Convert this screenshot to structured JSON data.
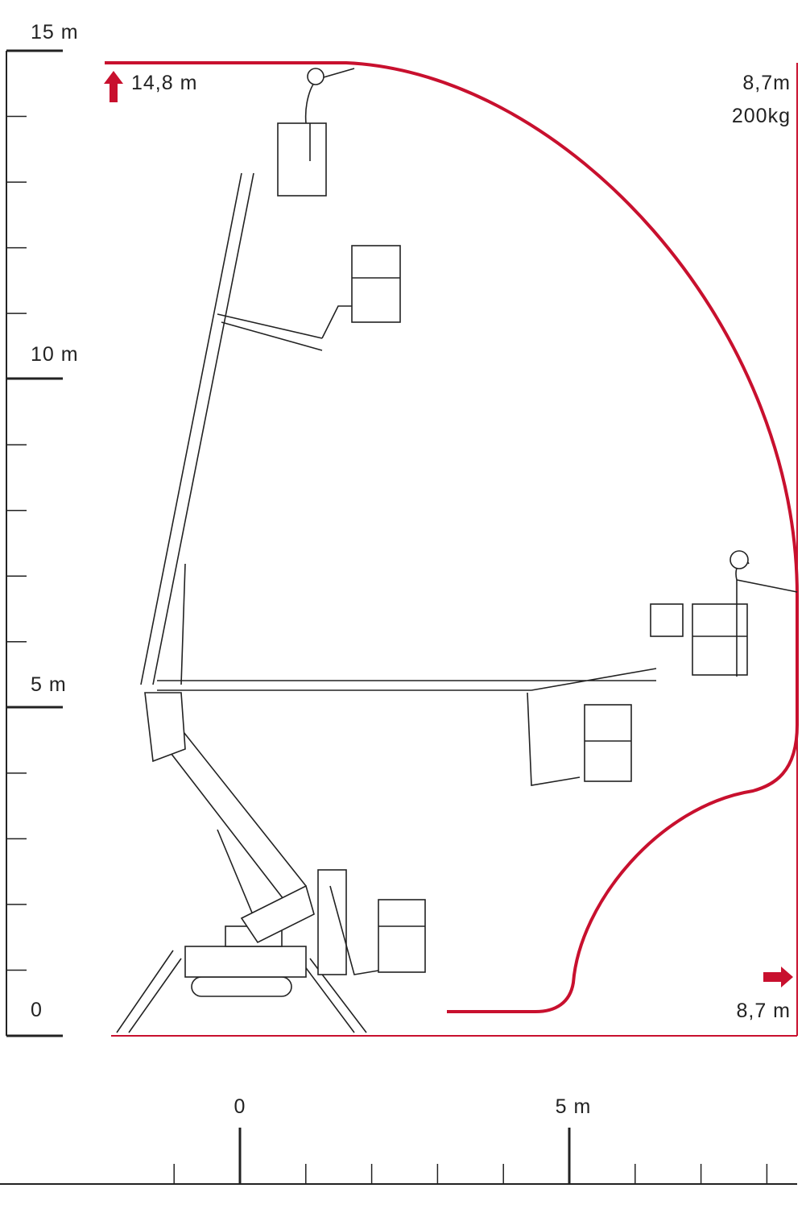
{
  "vertical_scale": {
    "labels": [
      "15 m",
      "10 m",
      "5 m",
      "0"
    ]
  },
  "horizontal_scale": {
    "labels": [
      "0",
      "5 m"
    ]
  },
  "annotations": {
    "max_height": "14,8 m",
    "top_right_reach": "8,7m",
    "capacity": "200kg",
    "max_outreach": "8,7 m"
  }
}
